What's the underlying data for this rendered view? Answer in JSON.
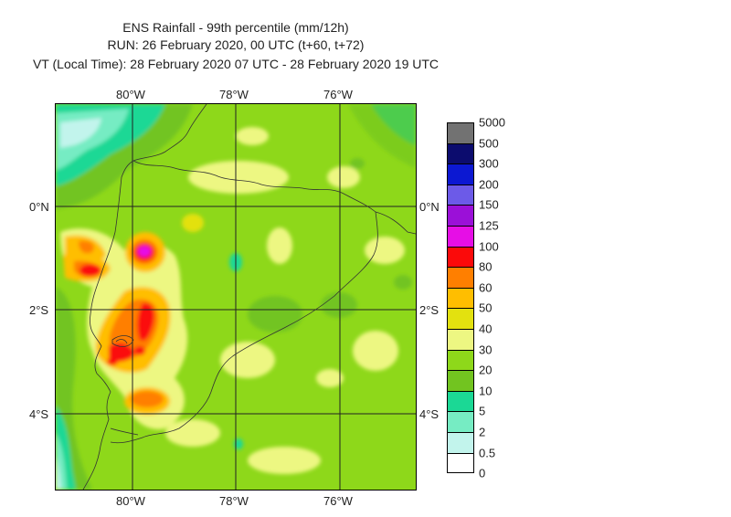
{
  "title": {
    "line1": "ENS Rainfall - 99th percentile (mm/12h)",
    "line2": "RUN: 26 February 2020, 00 UTC (t+60, t+72)",
    "line3": "VT (Local Time): 28 February 2020 07 UTC - 28 February 2020 19 UTC"
  },
  "map": {
    "lon_ticks": [
      "80°W",
      "78°W",
      "76°W"
    ],
    "lat_ticks_left": [
      "0°N",
      "2°S",
      "4°S"
    ],
    "lat_ticks_right": [
      "0°N",
      "2°S",
      "4°S"
    ],
    "background_color": "#8ed81a",
    "gridline_color": "#222222"
  },
  "colorbar": {
    "labels": [
      "5000",
      "500",
      "300",
      "200",
      "150",
      "125",
      "100",
      "80",
      "60",
      "50",
      "40",
      "30",
      "20",
      "10",
      "5",
      "2",
      "0.5",
      "0"
    ],
    "colors": [
      "#727272",
      "#0c0c6e",
      "#0c18d2",
      "#6c5ae8",
      "#9b10d8",
      "#e60ee6",
      "#fb0a0a",
      "#ff7f00",
      "#ffbe00",
      "#e3e10f",
      "#edf782",
      "#8ed81a",
      "#72c420",
      "#1bd895",
      "#76ecc3",
      "#c2f4ec",
      "#ffffff"
    ]
  }
}
